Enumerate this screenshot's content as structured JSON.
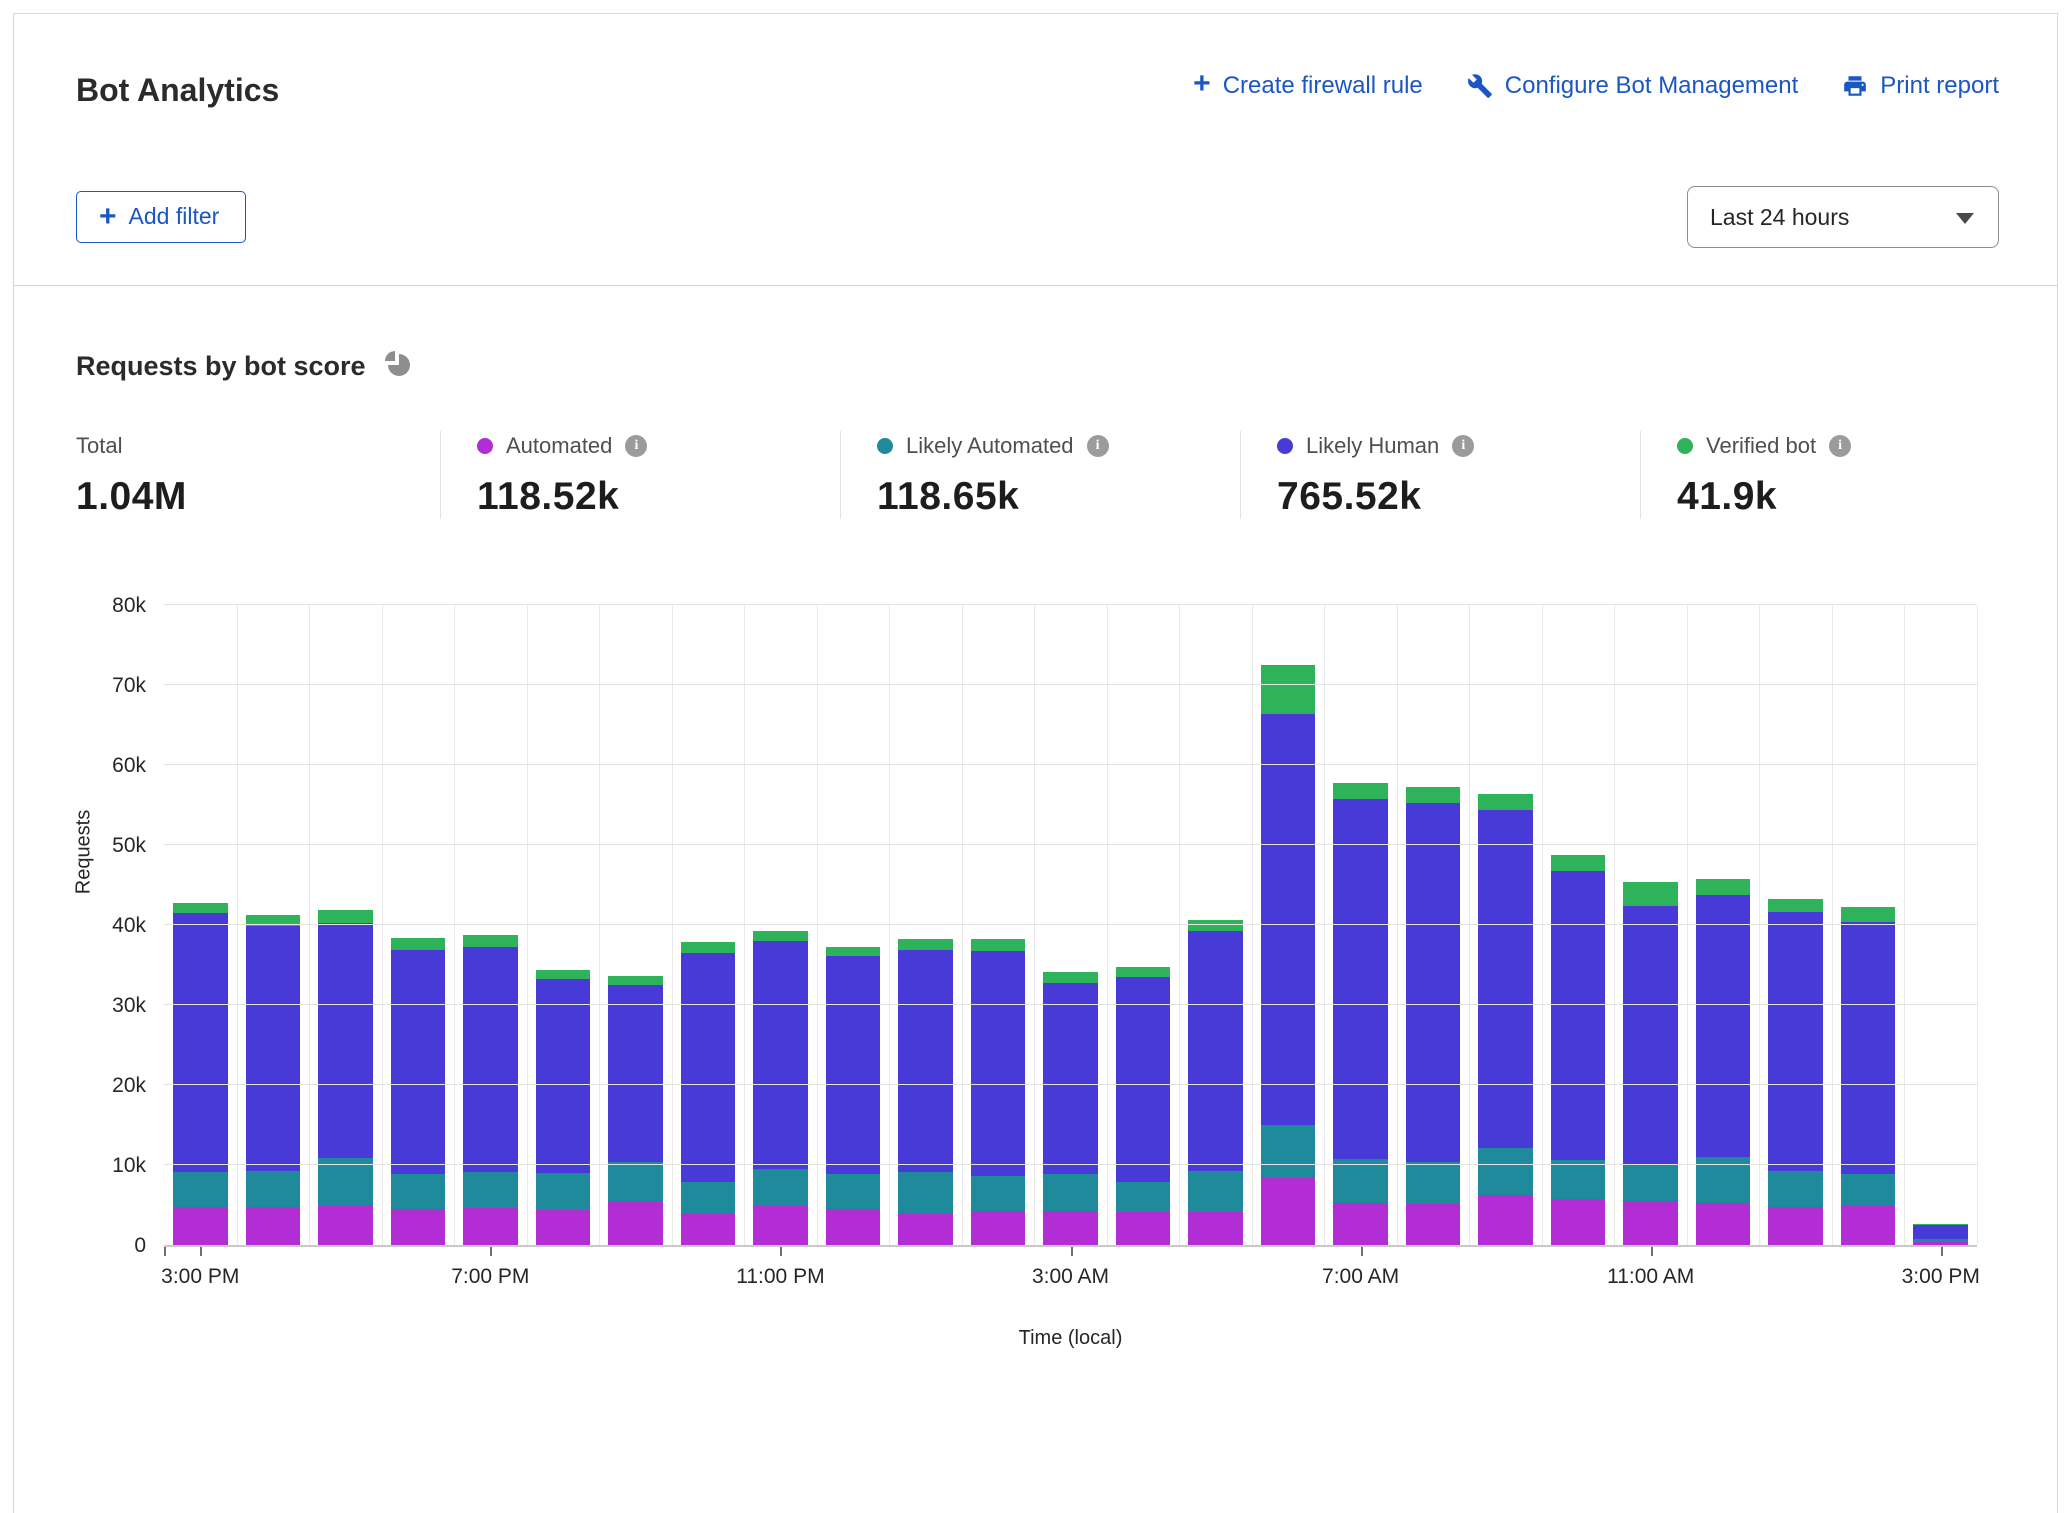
{
  "header": {
    "title": "Bot Analytics",
    "actions": [
      {
        "label": "Create firewall rule",
        "icon": "plus-icon"
      },
      {
        "label": "Configure Bot Management",
        "icon": "wrench-icon"
      },
      {
        "label": "Print report",
        "icon": "printer-icon"
      }
    ]
  },
  "toolbar": {
    "add_filter_label": "Add filter",
    "time_range_value": "Last 24 hours"
  },
  "section": {
    "title": "Requests by bot score",
    "icon": "pie-chart-icon"
  },
  "stats": [
    {
      "label": "Total",
      "value": "1.04M",
      "color": "",
      "info": false
    },
    {
      "label": "Automated",
      "value": "118.52k",
      "color": "#b22dd4",
      "info": true
    },
    {
      "label": "Likely Automated",
      "value": "118.65k",
      "color": "#1f8a9c",
      "info": true
    },
    {
      "label": "Likely Human",
      "value": "765.52k",
      "color": "#473ad6",
      "info": true
    },
    {
      "label": "Verified bot",
      "value": "41.9k",
      "color": "#2fb35a",
      "info": true
    }
  ],
  "chart_data": {
    "type": "bar",
    "stacked": true,
    "ylabel": "Requests",
    "xlabel": "Time (local)",
    "unit": "thousands of requests",
    "ylim": [
      0,
      80
    ],
    "grid": true,
    "yticks": [
      "0",
      "10k",
      "20k",
      "30k",
      "40k",
      "50k",
      "60k",
      "70k",
      "80k"
    ],
    "xtick_labels": [
      "3:00 PM",
      "7:00 PM",
      "11:00 PM",
      "3:00 AM",
      "7:00 AM",
      "11:00 AM",
      "3:00 PM"
    ],
    "categories": [
      "3:00 PM",
      "4:00 PM",
      "5:00 PM",
      "6:00 PM",
      "7:00 PM",
      "8:00 PM",
      "9:00 PM",
      "10:00 PM",
      "11:00 PM",
      "12:00 AM",
      "1:00 AM",
      "2:00 AM",
      "3:00 AM",
      "4:00 AM",
      "5:00 AM",
      "6:00 AM",
      "7:00 AM",
      "8:00 AM",
      "9:00 AM",
      "10:00 AM",
      "11:00 AM",
      "12:00 PM",
      "1:00 PM",
      "2:00 PM",
      "3:00 PM"
    ],
    "series": [
      {
        "name": "Automated",
        "color": "#b22dd4",
        "values": [
          4.7,
          4.8,
          5.0,
          4.45,
          4.65,
          4.4,
          5.5,
          3.85,
          4.9,
          4.45,
          4.05,
          4.2,
          4.2,
          4.1,
          4.1,
          8.4,
          5.2,
          5.1,
          6.3,
          5.7,
          5.5,
          5.3,
          4.8,
          4.9,
          0.4
        ]
      },
      {
        "name": "Likely Automated",
        "color": "#1f8a9c",
        "values": [
          4.4,
          4.4,
          5.9,
          4.45,
          4.45,
          4.6,
          4.9,
          4.05,
          4.6,
          4.45,
          5.05,
          4.4,
          4.7,
          3.75,
          5.2,
          6.6,
          5.6,
          5.3,
          5.8,
          4.9,
          4.5,
          5.7,
          4.4,
          4.0,
          0.4
        ]
      },
      {
        "name": "Likely Human",
        "color": "#473ad6",
        "values": [
          32.4,
          30.7,
          29.4,
          28.0,
          28.2,
          24.3,
          22.1,
          28.6,
          28.5,
          27.2,
          27.8,
          28.2,
          23.9,
          25.65,
          29.9,
          51.4,
          45.0,
          44.8,
          42.3,
          36.2,
          32.4,
          32.7,
          32.4,
          31.5,
          1.7
        ]
      },
      {
        "name": "Verified bot",
        "color": "#2fb35a",
        "values": [
          1.3,
          1.4,
          1.6,
          1.5,
          1.5,
          1.1,
          1.1,
          1.4,
          1.3,
          1.2,
          1.3,
          1.4,
          1.3,
          1.3,
          1.4,
          6.1,
          2.0,
          2.0,
          2.0,
          1.9,
          3.0,
          2.0,
          1.7,
          1.8,
          0.1
        ]
      }
    ]
  }
}
